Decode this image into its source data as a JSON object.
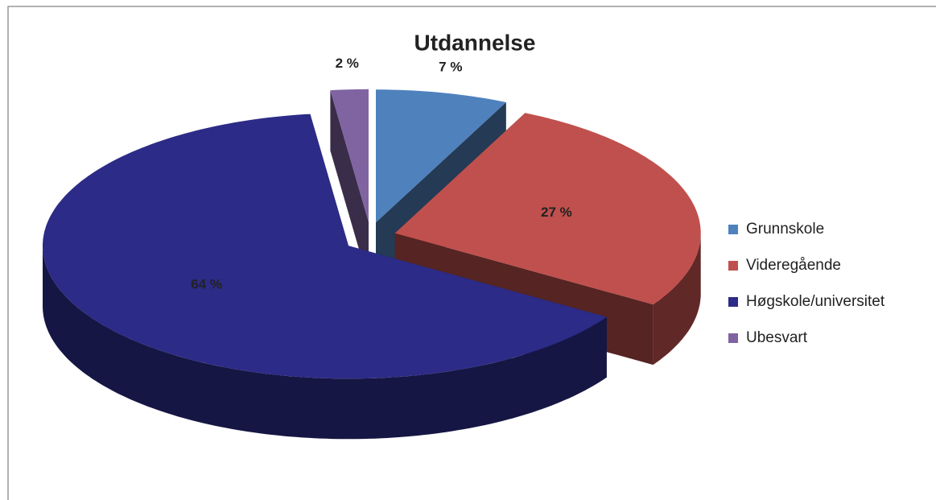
{
  "chart_data": {
    "type": "pie",
    "title": "Utdannelse",
    "categories": [
      "Grunnskole",
      "Videregående",
      "Høgskole/universitet",
      "Ubesvart"
    ],
    "values": [
      7,
      27,
      64,
      2
    ],
    "value_labels": [
      "7 %",
      "27 %",
      "64 %",
      "2 %"
    ],
    "colors": [
      "#4f81bd",
      "#c0504d",
      "#2c2b87",
      "#8064a2"
    ],
    "legend": "right",
    "style": "3d-exploded"
  }
}
